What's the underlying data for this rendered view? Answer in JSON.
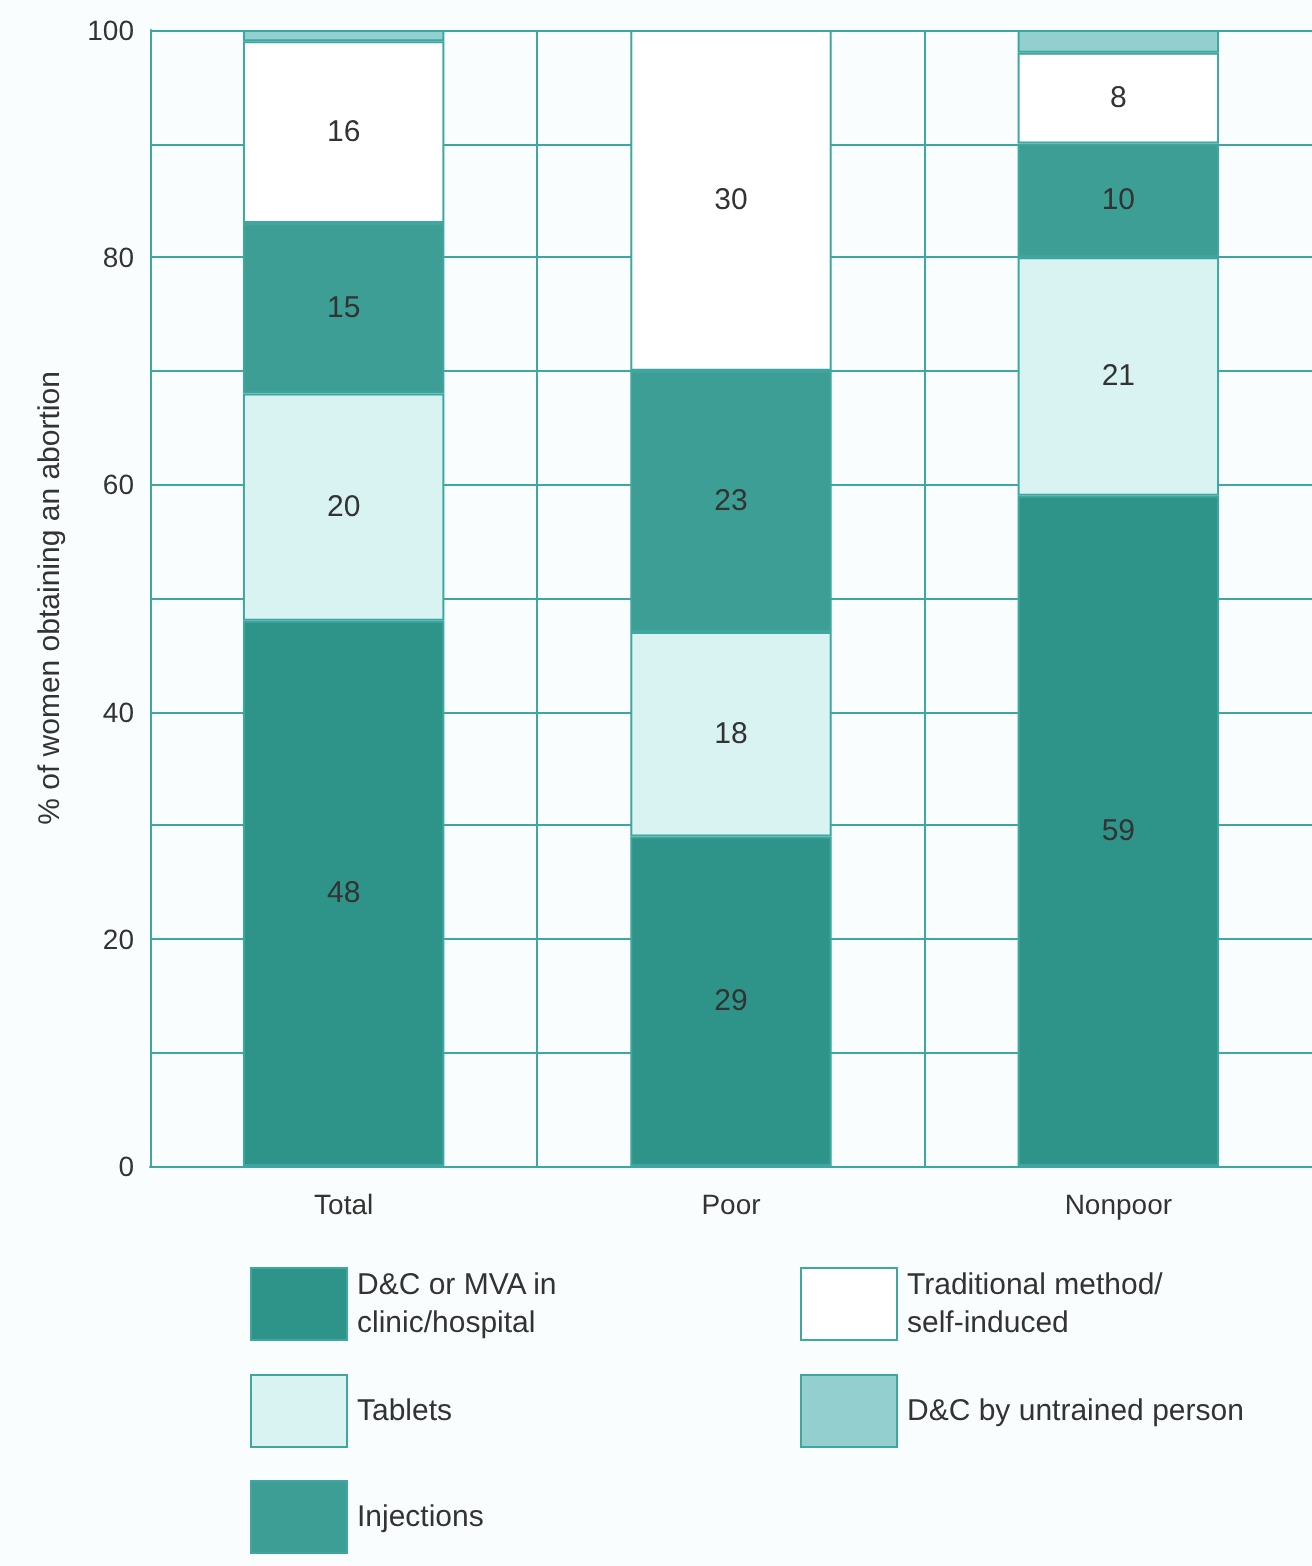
{
  "chart_data": {
    "type": "bar",
    "stacked": true,
    "ylabel": "% of women obtaining an abortion",
    "categories": [
      "Total",
      "Poor",
      "Nonpoor"
    ],
    "series": [
      {
        "name": "D&C or MVA in clinic/hospital",
        "color": "#2e948a",
        "values": [
          48,
          29,
          59
        ],
        "value_labels": [
          "48",
          "29",
          "59"
        ]
      },
      {
        "name": "Tablets",
        "color": "#d9f2f2",
        "values": [
          20,
          18,
          21
        ],
        "value_labels": [
          "20",
          "18",
          "21"
        ]
      },
      {
        "name": "Injections",
        "color": "#3c9e95",
        "values": [
          15,
          23,
          10
        ],
        "value_labels": [
          "15",
          "23",
          "10"
        ]
      },
      {
        "name": "Traditional method/ self-induced",
        "color": "#ffffff",
        "values": [
          16,
          30,
          8
        ],
        "value_labels": [
          "16",
          "30",
          "8"
        ]
      },
      {
        "name": "D&C by untrained person",
        "color": "#93cfcf",
        "values": [
          1,
          null,
          2
        ],
        "value_labels": [
          null,
          null,
          null
        ]
      }
    ],
    "ylim": [
      0,
      100
    ],
    "yticks": [
      0,
      {
        "value": 10,
        "label": null
      },
      20,
      {
        "value": 30,
        "label": null
      },
      40,
      {
        "value": 50,
        "label": null
      },
      60,
      {
        "value": 70,
        "label": null
      },
      80,
      {
        "value": 90,
        "label": null
      },
      100
    ],
    "grid": true,
    "legend": "bottom"
  }
}
